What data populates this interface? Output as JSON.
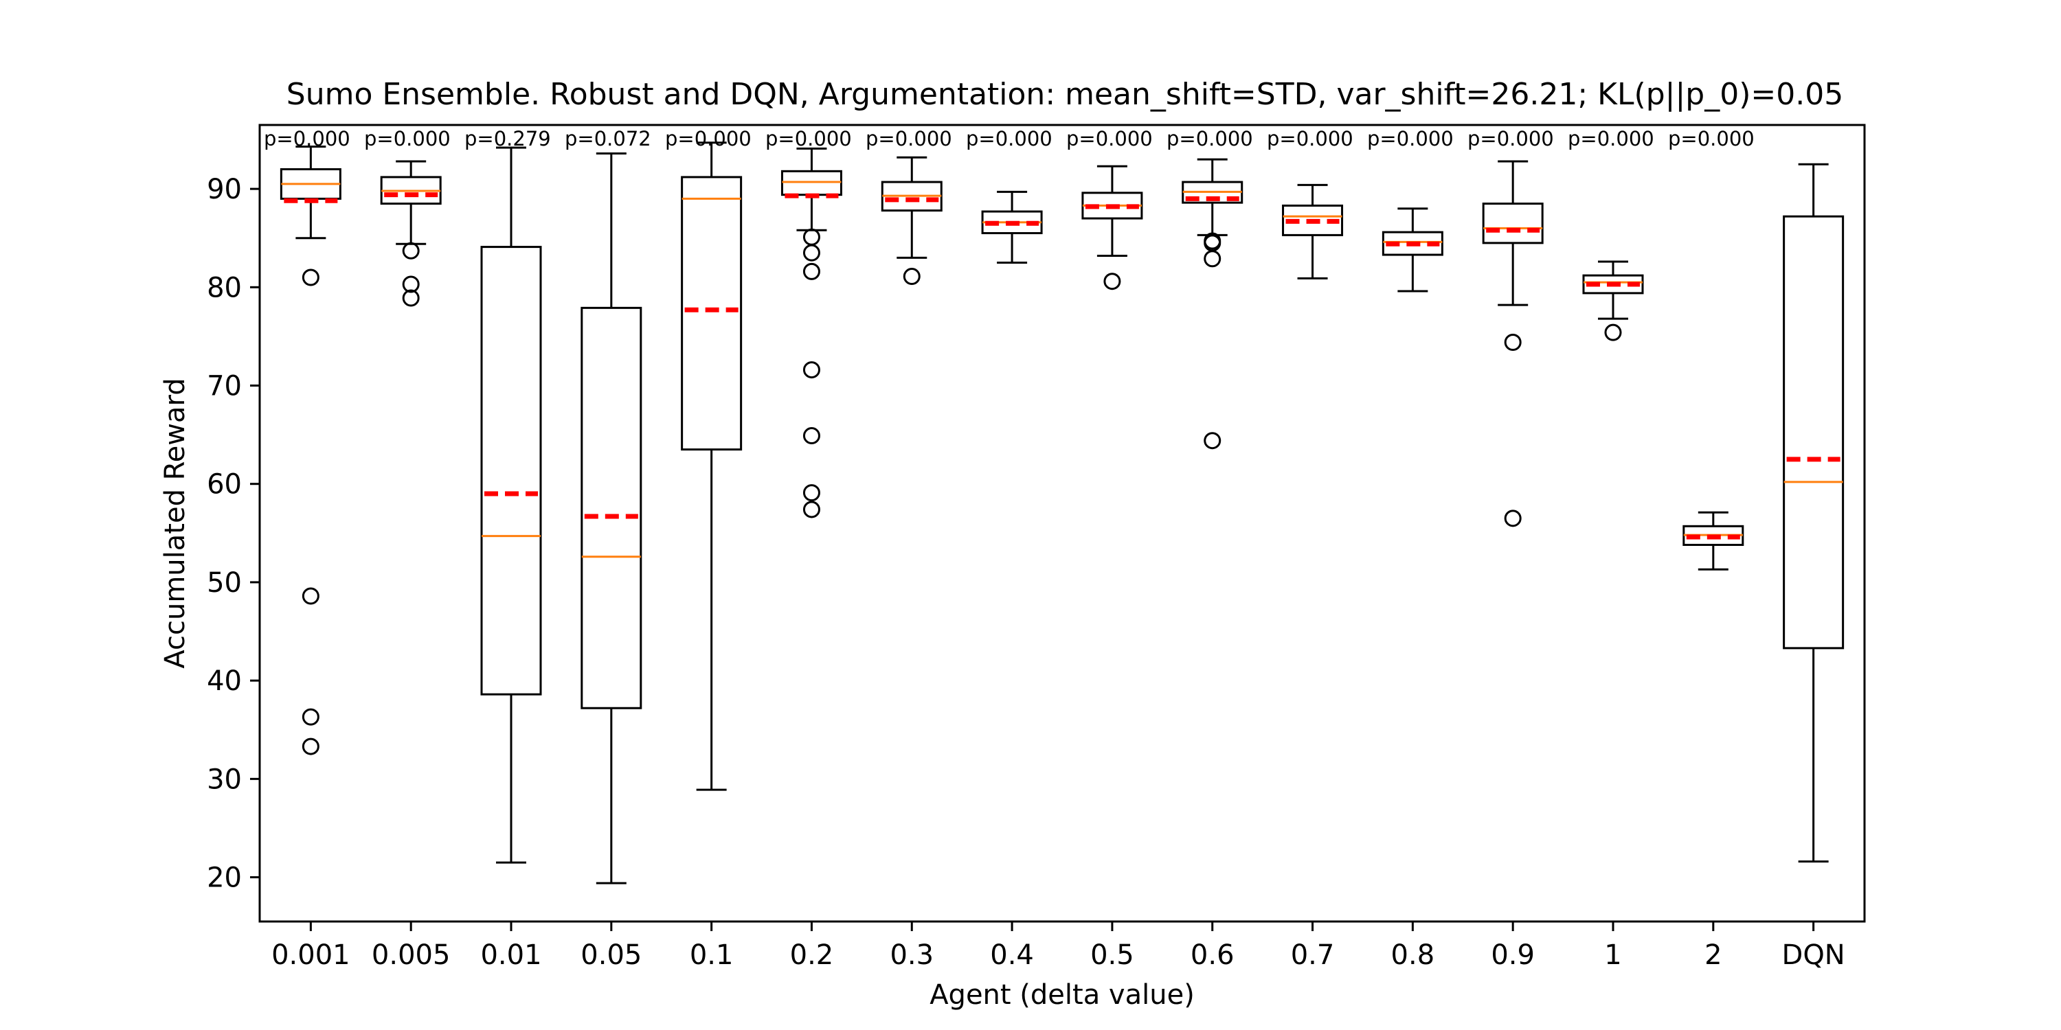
{
  "chart_data": {
    "type": "box",
    "title": "Sumo Ensemble. Robust and DQN, Argumentation: mean_shift=STD, var_shift=26.21; KL(p||p_0)=0.05",
    "xlabel": "Agent (delta value)",
    "ylabel": "Accumulated Reward",
    "ylim": [
      15.5,
      96.5
    ],
    "yticks": [
      "20",
      "30",
      "40",
      "50",
      "60",
      "70",
      "80",
      "90"
    ],
    "yticks_values": [
      20,
      30,
      40,
      50,
      60,
      70,
      80,
      90
    ],
    "categories": [
      "0.001",
      "0.005",
      "0.01",
      "0.05",
      "0.1",
      "0.2",
      "0.3",
      "0.4",
      "0.5",
      "0.6",
      "0.7",
      "0.8",
      "0.9",
      "1",
      "2",
      "DQN"
    ],
    "p_values": [
      "p=0.000",
      "p=0.000",
      "p=0.279",
      "p=0.072",
      "p=0.000",
      "p=0.000",
      "p=0.000",
      "p=0.000",
      "p=0.000",
      "p=0.000",
      "p=0.000",
      "p=0.000",
      "p=0.000",
      "p=0.000",
      "p=0.000"
    ],
    "boxes": [
      {
        "whisker_low": 85.0,
        "q1": 89.0,
        "median": 90.5,
        "q3": 92.0,
        "whisker_high": 94.3,
        "mean": 88.8,
        "fliers": [
          81.0,
          48.6,
          36.3,
          33.3
        ]
      },
      {
        "whisker_low": 84.4,
        "q1": 88.5,
        "median": 89.8,
        "q3": 91.2,
        "whisker_high": 92.8,
        "mean": 89.4,
        "fliers": [
          83.7,
          80.3,
          78.9
        ]
      },
      {
        "whisker_low": 21.5,
        "q1": 38.6,
        "median": 54.7,
        "q3": 84.1,
        "whisker_high": 94.2,
        "mean": 59.0,
        "fliers": []
      },
      {
        "whisker_low": 19.4,
        "q1": 37.2,
        "median": 52.6,
        "q3": 77.9,
        "whisker_high": 93.6,
        "mean": 56.7,
        "fliers": []
      },
      {
        "whisker_low": 28.9,
        "q1": 63.5,
        "median": 89.0,
        "q3": 91.2,
        "whisker_high": 94.7,
        "mean": 77.7,
        "fliers": []
      },
      {
        "whisker_low": 85.8,
        "q1": 89.4,
        "median": 90.7,
        "q3": 91.8,
        "whisker_high": 94.1,
        "mean": 89.3,
        "fliers": [
          85.1,
          83.5,
          81.6,
          71.6,
          64.9,
          59.1,
          57.4
        ]
      },
      {
        "whisker_low": 83.0,
        "q1": 87.8,
        "median": 89.3,
        "q3": 90.7,
        "whisker_high": 93.2,
        "mean": 88.9,
        "fliers": [
          81.1
        ]
      },
      {
        "whisker_low": 82.5,
        "q1": 85.5,
        "median": 86.6,
        "q3": 87.7,
        "whisker_high": 89.7,
        "mean": 86.5,
        "fliers": []
      },
      {
        "whisker_low": 83.2,
        "q1": 87.0,
        "median": 88.3,
        "q3": 89.6,
        "whisker_high": 92.3,
        "mean": 88.2,
        "fliers": [
          80.6
        ]
      },
      {
        "whisker_low": 85.3,
        "q1": 88.6,
        "median": 89.7,
        "q3": 90.7,
        "whisker_high": 93.0,
        "mean": 89.0,
        "fliers": [
          84.7,
          84.5,
          82.9,
          64.4
        ]
      },
      {
        "whisker_low": 80.9,
        "q1": 85.3,
        "median": 87.2,
        "q3": 88.3,
        "whisker_high": 90.4,
        "mean": 86.7,
        "fliers": []
      },
      {
        "whisker_low": 79.6,
        "q1": 83.3,
        "median": 84.6,
        "q3": 85.6,
        "whisker_high": 88.0,
        "mean": 84.4,
        "fliers": []
      },
      {
        "whisker_low": 78.2,
        "q1": 84.5,
        "median": 86.0,
        "q3": 88.5,
        "whisker_high": 92.8,
        "mean": 85.8,
        "fliers": [
          74.4,
          56.5
        ]
      },
      {
        "whisker_low": 76.8,
        "q1": 79.4,
        "median": 80.5,
        "q3": 81.2,
        "whisker_high": 82.6,
        "mean": 80.3,
        "fliers": [
          75.4
        ]
      },
      {
        "whisker_low": 51.3,
        "q1": 53.8,
        "median": 54.8,
        "q3": 55.7,
        "whisker_high": 57.1,
        "mean": 54.6,
        "fliers": []
      },
      {
        "whisker_low": 21.6,
        "q1": 43.3,
        "median": 60.2,
        "q3": 87.2,
        "whisker_high": 92.5,
        "mean": 62.5,
        "fliers": []
      }
    ]
  }
}
